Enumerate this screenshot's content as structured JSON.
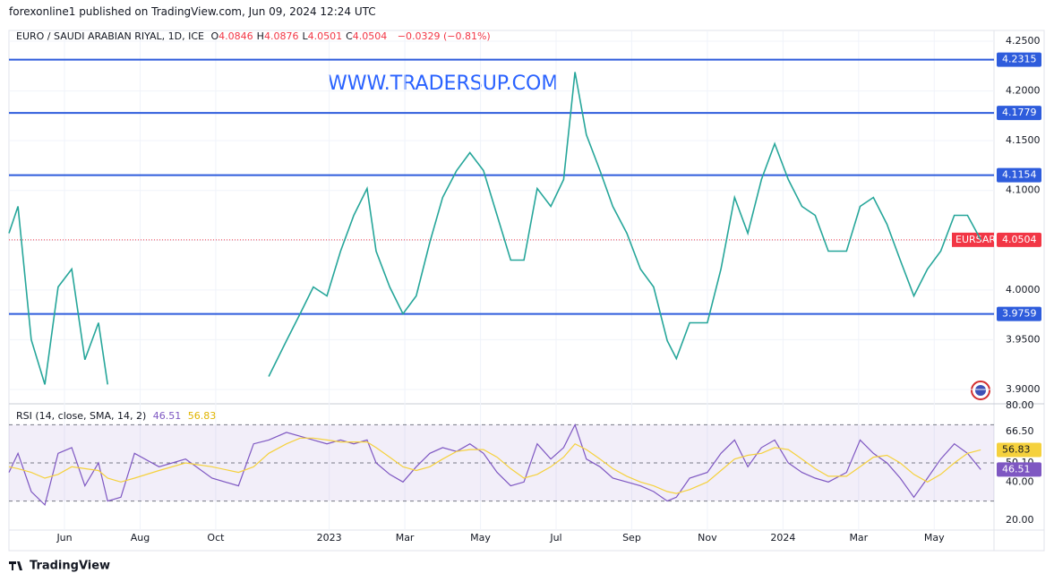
{
  "header": {
    "published": "forexonline1 published on TradingView.com, Jun 09, 2024 12:24 UTC"
  },
  "chart_data": [
    {
      "type": "line",
      "title": "EURO / SAUDI ARABIAN RIYAL, 1D, ICE",
      "ohlc": [
        {
          "label": "O",
          "value": "4.0846"
        },
        {
          "label": "H",
          "value": "4.0876"
        },
        {
          "label": "L",
          "value": "4.0501"
        },
        {
          "label": "C",
          "value": "4.0504"
        }
      ],
      "change": "−0.0329 (−0.81%)",
      "annotation": "WWW.TRADERSUP.COM",
      "x": [
        -0.47,
        -0.23,
        0.12,
        0.48,
        0.83,
        1.19,
        1.54,
        1.9,
        2.14,
        4.5,
        6.4,
        6.87,
        7.23,
        7.58,
        7.94,
        8.3,
        8.65,
        9.0,
        9.24,
        9.6,
        9.95,
        10.3,
        10.66,
        11.0,
        11.37,
        11.72,
        12.08,
        12.44,
        12.8,
        13.15,
        13.5,
        13.86,
        14.2,
        14.5,
        14.8,
        15.16,
        15.5,
        15.87,
        16.23,
        16.58,
        16.94,
        17.18,
        17.53,
        18.0,
        18.36,
        18.72,
        19.07,
        19.43,
        19.78,
        20.14,
        20.5,
        20.85,
        21.2,
        21.68,
        22.04,
        22.39,
        22.75,
        23.1,
        23.46,
        23.82,
        24.17,
        24.53,
        24.88,
        25.23
      ],
      "series": [
        {
          "name": "EURSAR",
          "color": "#26a69a",
          "values": [
            4.057,
            4.084,
            3.95,
            3.905,
            4.003,
            4.021,
            3.93,
            3.967,
            3.905,
            null,
            3.913,
            3.949,
            3.976,
            4.003,
            3.994,
            4.039,
            4.075,
            4.102,
            4.039,
            4.003,
            3.976,
            3.994,
            4.048,
            4.093,
            4.12,
            4.138,
            4.12,
            4.075,
            4.03,
            4.03,
            4.102,
            4.084,
            4.111,
            4.219,
            4.156,
            4.12,
            4.084,
            4.057,
            4.021,
            4.003,
            3.949,
            3.931,
            3.967,
            3.967,
            4.021,
            4.093,
            4.057,
            4.111,
            4.147,
            4.111,
            4.084,
            4.075,
            4.039,
            4.039,
            4.084,
            4.093,
            4.066,
            4.03,
            3.994,
            4.021,
            4.039,
            4.075,
            4.075,
            4.0504
          ]
        }
      ],
      "levels": [
        4.2315,
        4.1779,
        4.1154,
        3.9759
      ],
      "level_color": "#2e5cdc",
      "last": {
        "name": "EURSAR",
        "value": 4.0504,
        "color": "#f23645"
      },
      "xlim": [
        -0.469,
        25.58
      ],
      "xticks": [
        {
          "value": 1,
          "label": "Jun"
        },
        {
          "value": 3,
          "label": "Aug"
        },
        {
          "value": 5,
          "label": "Oct"
        },
        {
          "value": 8,
          "label": "2023"
        },
        {
          "value": 10,
          "label": "Mar"
        },
        {
          "value": 12,
          "label": "May"
        },
        {
          "value": 14,
          "label": "Jul"
        },
        {
          "value": 16,
          "label": "Sep"
        },
        {
          "value": 18,
          "label": "Nov"
        },
        {
          "value": 20,
          "label": "2024"
        },
        {
          "value": 22,
          "label": "Mar"
        },
        {
          "value": 24,
          "label": "May"
        }
      ],
      "ylim": [
        3.8865,
        4.2599
      ],
      "yticks": [
        {
          "value": 3.9,
          "label": "3.9000"
        },
        {
          "value": 3.95,
          "label": "3.9500"
        },
        {
          "value": 4.0,
          "label": "4.0000"
        },
        {
          "value": 4.05,
          "label": "4.0500"
        },
        {
          "value": 4.1,
          "label": "4.1000"
        },
        {
          "value": 4.15,
          "label": "4.1500"
        },
        {
          "value": 4.2,
          "label": "4.2000"
        },
        {
          "value": 4.25,
          "label": "4.2500"
        }
      ],
      "grid": true
    },
    {
      "type": "line",
      "title": "RSI (14, close, SMA, 14, 2)",
      "x": [
        -0.47,
        -0.23,
        0.12,
        0.48,
        0.83,
        1.19,
        1.54,
        1.9,
        2.14,
        2.49,
        2.85,
        3.5,
        4.2,
        4.9,
        5.6,
        6.0,
        6.4,
        6.87,
        7.23,
        7.58,
        7.94,
        8.3,
        8.65,
        9.0,
        9.24,
        9.6,
        9.95,
        10.3,
        10.66,
        11.0,
        11.37,
        11.72,
        12.08,
        12.44,
        12.8,
        13.15,
        13.5,
        13.86,
        14.2,
        14.5,
        14.8,
        15.16,
        15.5,
        15.87,
        16.23,
        16.58,
        16.94,
        17.18,
        17.53,
        18.0,
        18.36,
        18.72,
        19.07,
        19.43,
        19.78,
        20.14,
        20.5,
        20.85,
        21.2,
        21.68,
        22.04,
        22.39,
        22.75,
        23.1,
        23.46,
        23.82,
        24.17,
        24.53,
        24.88,
        25.23
      ],
      "series": [
        {
          "name": "RSI",
          "color": "#7e57c2",
          "values": [
            45,
            55,
            35,
            28,
            55,
            58,
            38,
            50,
            30,
            32,
            55,
            48,
            52,
            42,
            38,
            60,
            62,
            66,
            64,
            62,
            60,
            62,
            60,
            62,
            50,
            44,
            40,
            48,
            55,
            58,
            56,
            60,
            55,
            45,
            38,
            40,
            60,
            52,
            58,
            70,
            52,
            48,
            42,
            40,
            38,
            35,
            30,
            32,
            42,
            45,
            55,
            62,
            48,
            58,
            62,
            50,
            45,
            42,
            40,
            45,
            62,
            55,
            50,
            42,
            32,
            42,
            52,
            60,
            55,
            46.51
          ]
        },
        {
          "name": "SMA",
          "color": "#f5d13d",
          "values": [
            48,
            47,
            45,
            42,
            44,
            48,
            47,
            46,
            42,
            40,
            42,
            46,
            50,
            48,
            45,
            48,
            55,
            60,
            63,
            63,
            62,
            61,
            61,
            61,
            58,
            53,
            48,
            46,
            48,
            52,
            56,
            57,
            57,
            53,
            47,
            42,
            44,
            48,
            53,
            60,
            57,
            52,
            47,
            43,
            40,
            38,
            35,
            34,
            36,
            40,
            46,
            52,
            54,
            55,
            58,
            57,
            52,
            47,
            43,
            43,
            48,
            53,
            54,
            50,
            44,
            40,
            44,
            50,
            55,
            56.83
          ]
        }
      ],
      "bands": [
        70,
        50,
        30
      ],
      "xlim": [
        -0.469,
        25.58
      ],
      "ylim": [
        14.8,
        80.5
      ],
      "yticks": [
        {
          "value": 80,
          "label": "80.00"
        },
        {
          "value": 66.5,
          "label": "66.50"
        },
        {
          "value": 50.1,
          "label": "50.10"
        },
        {
          "value": 40,
          "label": "40.00"
        },
        {
          "value": 20,
          "label": "20.00"
        }
      ]
    }
  ],
  "footer": {
    "brand": "TradingView"
  }
}
